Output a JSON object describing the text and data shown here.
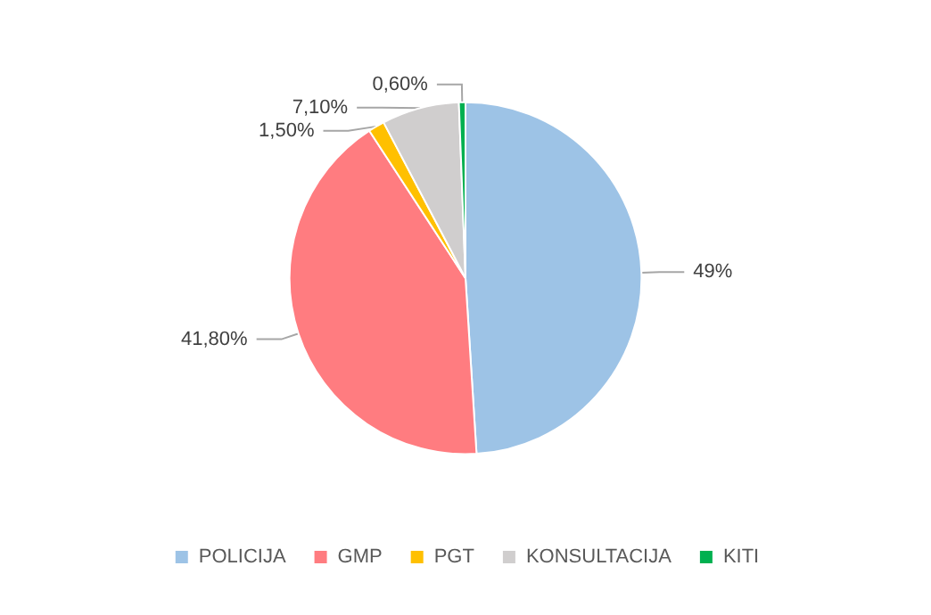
{
  "chart_data": {
    "type": "pie",
    "categories": [
      "POLICIJA",
      "GMP",
      "PGT",
      "KONSULTACIJA",
      "KITI"
    ],
    "values": [
      49,
      41.8,
      1.5,
      7.1,
      0.6
    ],
    "colors": [
      "#9dc3e6",
      "#ff7c80",
      "#ffc000",
      "#d0cece",
      "#00b050"
    ],
    "value_labels": [
      "49%",
      "41,80%",
      "1,50%",
      "7,10%",
      "0,60%"
    ],
    "legend": "bottom"
  }
}
